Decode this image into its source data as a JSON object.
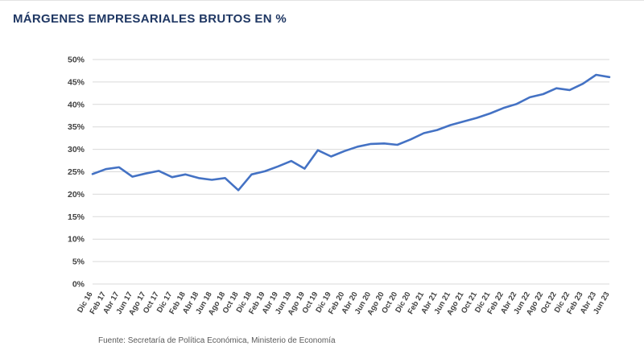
{
  "chart_data": {
    "type": "line",
    "title": "MÁRGENES EMPRESARIALES BRUTOS EN %",
    "source": "Fuente: Secretaría de Política Económica, Ministerio de Economía",
    "xlabel": "",
    "ylabel": "",
    "ylim": [
      0,
      50
    ],
    "ytick_step": 5,
    "ytick_suffix": "%",
    "grid": true,
    "legend": "none",
    "line_color": "#4472c4",
    "gridline_color": "#d9d9d9",
    "tick_label_color": "#404040",
    "categories": [
      "Dic 16",
      "Feb 17",
      "Abr 17",
      "Jun 17",
      "Ago 17",
      "Oct 17",
      "Dic 17",
      "Feb 18",
      "Abr 18",
      "Jun 18",
      "Ago 18",
      "Oct 18",
      "Dic 18",
      "Feb 19",
      "Abr 19",
      "Jun 19",
      "Ago 19",
      "Oct 19",
      "Dic 19",
      "Feb 20",
      "Abr 20",
      "Jun 20",
      "Ago 20",
      "Oct 20",
      "Dic 20",
      "Feb 21",
      "Abr 21",
      "Jun 21",
      "Ago 21",
      "Oct 21",
      "Dic 21",
      "Feb 22",
      "Abr 22",
      "Jun 22",
      "Ago 22",
      "Oct 22",
      "Dic 22",
      "Feb 23",
      "Abr 23",
      "Jun 23"
    ],
    "values": [
      24.5,
      25.6,
      26.0,
      23.9,
      24.6,
      25.2,
      23.8,
      24.4,
      23.6,
      23.2,
      23.6,
      20.9,
      24.4,
      25.1,
      26.2,
      27.4,
      25.7,
      29.8,
      28.4,
      29.6,
      30.6,
      31.2,
      31.3,
      31.0,
      32.2,
      33.6,
      34.3,
      35.4,
      36.2,
      37.0,
      38.0,
      39.2,
      40.1,
      41.6,
      42.3,
      43.6,
      43.2,
      44.6,
      46.6,
      46.1
    ]
  }
}
